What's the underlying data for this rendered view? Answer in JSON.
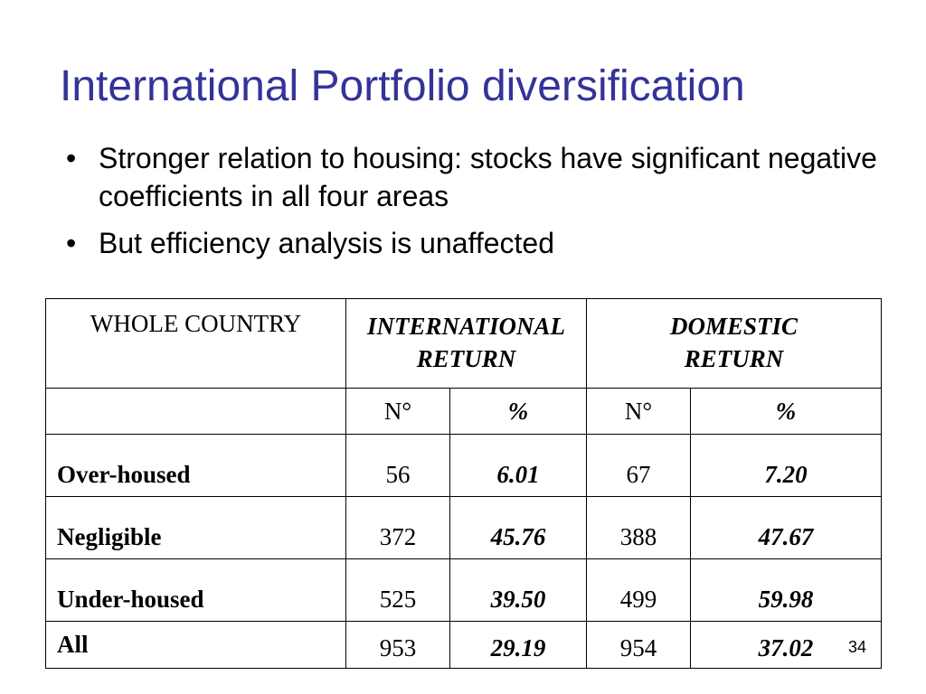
{
  "slide": {
    "title": "International Portfolio diversification",
    "bullets": [
      "Stronger relation to housing: stocks have significant negative coefficients in all four areas",
      "But efficiency analysis is unaffected"
    ],
    "bullet_symbol": "•",
    "page_number": "34"
  },
  "table": {
    "corner_label": "WHOLE COUNTRY",
    "group_headers": [
      "INTERNATIONAL RETURN",
      "DOMESTIC RETURN"
    ],
    "sub_headers": [
      "N°",
      "%",
      "N°",
      "%"
    ],
    "rows": [
      {
        "label": "Over-housed",
        "cells": [
          "56",
          "6.01",
          "67",
          "7.20"
        ]
      },
      {
        "label": "Negligible",
        "cells": [
          "372",
          "45.76",
          "388",
          "47.67"
        ]
      },
      {
        "label": "Under-housed",
        "cells": [
          "525",
          "39.50",
          "499",
          "59.98"
        ]
      },
      {
        "label": "All",
        "cells": [
          "953",
          "29.19",
          "954",
          "37.02"
        ]
      }
    ]
  },
  "colors": {
    "title": "#333399",
    "text": "#000000",
    "background": "#ffffff"
  }
}
